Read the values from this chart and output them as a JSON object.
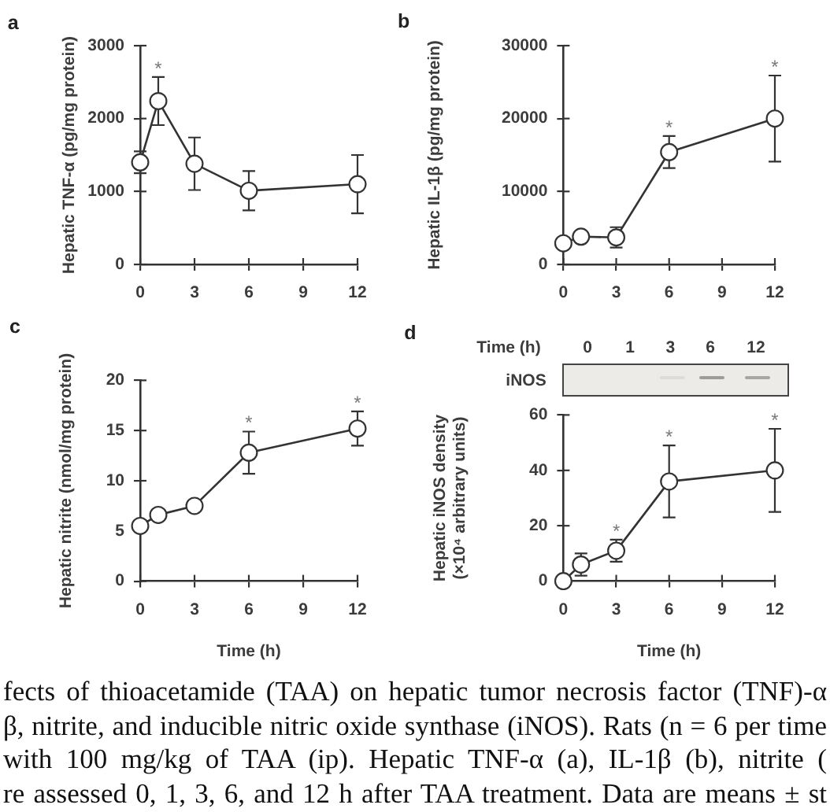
{
  "chart_data": [
    {
      "type": "line",
      "title": "a",
      "ylabel": "Hepatic TNF-α (pg/mg protein)",
      "x": [
        0,
        1,
        3,
        6,
        12
      ],
      "values": [
        1400,
        2240,
        1380,
        1010,
        1100
      ],
      "errors": [
        150,
        330,
        360,
        270,
        400
      ],
      "color": "#333333",
      "marker": "circle",
      "line_style": "solid",
      "xlim": [
        0,
        12
      ],
      "xticks": [
        0,
        3,
        6,
        9,
        12
      ],
      "ylim": [
        0,
        3000
      ],
      "yticks": [
        0,
        1000,
        2000,
        3000
      ],
      "annotations": [
        {
          "text": "*",
          "x": 1,
          "y": 2240
        }
      ]
    },
    {
      "type": "line",
      "title": "b",
      "ylabel": "Hepatic IL-1β (pg/mg protein)",
      "x": [
        0,
        1,
        3,
        6,
        12
      ],
      "values": [
        2900,
        3800,
        3700,
        15400,
        20000
      ],
      "errors": [
        null,
        null,
        1400,
        2200,
        5900
      ],
      "color": "#333333",
      "marker": "circle",
      "line_style": "solid",
      "xlim": [
        0,
        12
      ],
      "xticks": [
        0,
        3,
        6,
        9,
        12
      ],
      "ylim": [
        0,
        30000
      ],
      "yticks": [
        0,
        10000,
        20000,
        30000
      ],
      "annotations": [
        {
          "text": "*",
          "x": 6,
          "y": 15400
        },
        {
          "text": "*",
          "x": 12,
          "y": 20000
        }
      ]
    },
    {
      "type": "line",
      "title": "c",
      "xlabel": "Time (h)",
      "ylabel": "Hepatic nitrite (nmol/mg protein)",
      "x": [
        0,
        1,
        3,
        6,
        12
      ],
      "values": [
        5.5,
        6.6,
        7.5,
        12.8,
        15.2
      ],
      "errors": [
        null,
        null,
        null,
        2.1,
        1.7
      ],
      "color": "#333333",
      "marker": "circle",
      "line_style": "solid",
      "xlim": [
        0,
        12
      ],
      "xticks": [
        0,
        3,
        6,
        9,
        12
      ],
      "ylim": [
        0,
        20
      ],
      "yticks": [
        0,
        5,
        10,
        15,
        20
      ],
      "annotations": [
        {
          "text": "*",
          "x": 6,
          "y": 12.8
        },
        {
          "text": "*",
          "x": 12,
          "y": 15.2
        }
      ]
    },
    {
      "type": "line",
      "title": "d",
      "xlabel": "Time (h)",
      "ylabel": "Hepatic iNOS density (×10⁴ arbitrary units)",
      "x": [
        0,
        1,
        3,
        6,
        12
      ],
      "values": [
        0,
        6,
        11,
        36,
        40
      ],
      "errors": [
        null,
        4,
        4,
        13,
        15
      ],
      "color": "#333333",
      "marker": "circle",
      "line_style": "solid",
      "xlim": [
        0,
        12
      ],
      "xticks": [
        0,
        3,
        6,
        9,
        12
      ],
      "ylim": [
        0,
        60
      ],
      "yticks": [
        0,
        20,
        40,
        60
      ],
      "annotations": [
        {
          "text": "*",
          "x": 3,
          "y": 11
        },
        {
          "text": "*",
          "x": 6,
          "y": 36
        },
        {
          "text": "*",
          "x": 12,
          "y": 40
        },
        "Time (h)",
        "0",
        "1",
        "3",
        "6",
        "12",
        "iNOS"
      ]
    },
    {
      "type": "other",
      "annotations": [
        "fects of thioacetamide (TAA) on hepatic tumor necrosis factor (TNF)-α",
        "β, nitrite, and inducible nitric oxide synthase (iNOS). Rats (n = 6 per time",
        "with 100 mg/kg of TAA (ip). Hepatic TNF-α (a), IL-1β (b), nitrite (",
        "re assessed 0, 1, 3, 6, and 12 h after TAA treatment. Data are means ± st"
      ]
    }
  ]
}
